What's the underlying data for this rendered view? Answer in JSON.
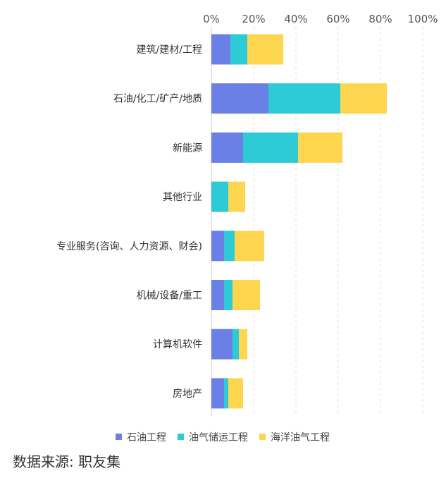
{
  "chart_data": {
    "type": "bar",
    "orientation": "horizontal",
    "stacked": true,
    "categories": [
      "建筑/建材/工程",
      "石油/化工/矿产/地质",
      "新能源",
      "其他行业",
      "专业服务(咨询、人力资源、财会)",
      "机械/设备/重工",
      "计算机软件",
      "房地产"
    ],
    "series": [
      {
        "name": "石油工程",
        "color": "#6b80e6",
        "values": [
          9,
          27,
          15,
          0,
          6,
          6,
          10,
          6
        ]
      },
      {
        "name": "油气储运工程",
        "color": "#2ecbd6",
        "values": [
          8,
          34,
          26,
          8,
          5,
          4,
          3,
          2
        ]
      },
      {
        "name": "海洋油气工程",
        "color": "#fdd54f",
        "values": [
          17,
          22,
          21,
          8,
          14,
          13,
          4,
          7
        ]
      }
    ],
    "x_ticks": [
      "0%",
      "20%",
      "40%",
      "60%",
      "80%",
      "100%"
    ],
    "xlim": [
      0,
      100
    ],
    "x_unit": "%",
    "grid": "vertical-dashed",
    "legend_position": "bottom"
  },
  "source": "数据来源: 职友集"
}
